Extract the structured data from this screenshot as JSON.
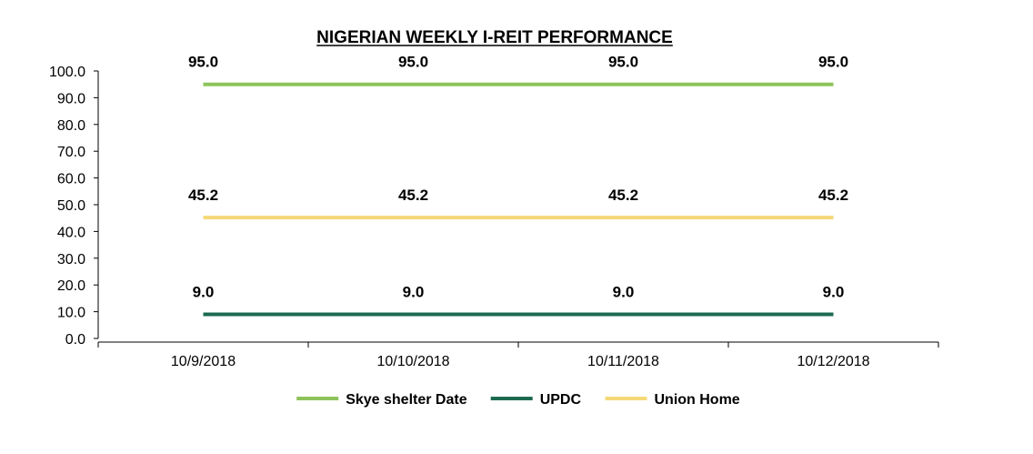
{
  "chart_data": {
    "type": "line",
    "title": "NIGERIAN WEEKLY I-REIT PERFORMANCE",
    "xlabel": "",
    "ylabel": "",
    "categories": [
      "10/9/2018",
      "10/10/2018",
      "10/11/2018",
      "10/12/2018"
    ],
    "ylim": [
      0,
      100
    ],
    "yticks": [
      "0.0",
      "10.0",
      "20.0",
      "30.0",
      "40.0",
      "50.0",
      "60.0",
      "70.0",
      "80.0",
      "90.0",
      "100.0"
    ],
    "grid": false,
    "legend_position": "bottom",
    "series": [
      {
        "name": "Skye shelter Date",
        "color": "#8dc35a",
        "values": [
          95.0,
          95.0,
          95.0,
          95.0
        ],
        "labels": [
          "95.0",
          "95.0",
          "95.0",
          "95.0"
        ]
      },
      {
        "name": "UPDC",
        "color": "#1d6a52",
        "values": [
          9.0,
          9.0,
          9.0,
          9.0
        ],
        "labels": [
          "9.0",
          "9.0",
          "9.0",
          "9.0"
        ]
      },
      {
        "name": "Union Home",
        "color": "#f5d978",
        "values": [
          45.2,
          45.2,
          45.2,
          45.2
        ],
        "labels": [
          "45.2",
          "45.2",
          "45.2",
          "45.2"
        ]
      }
    ]
  }
}
